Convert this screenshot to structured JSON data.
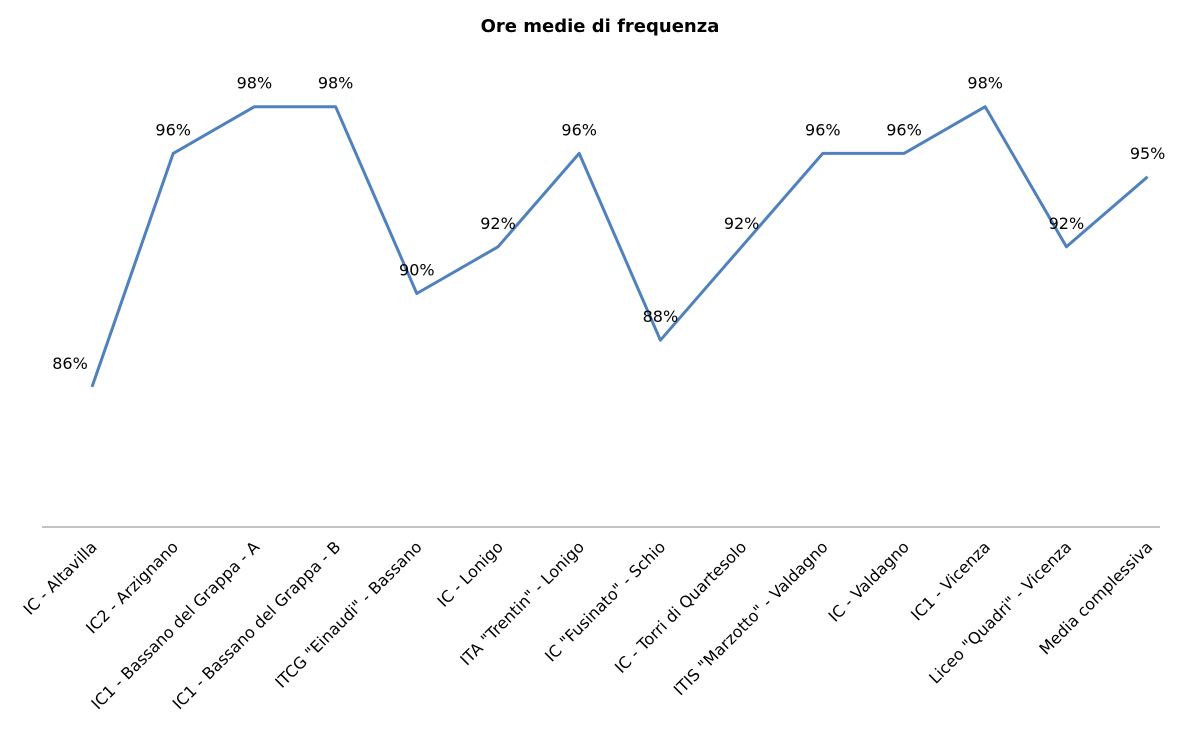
{
  "chart_data": {
    "type": "line",
    "title": "Ore medie di frequenza",
    "categories": [
      "IC - Altavilla",
      "IC2 - Arzignano",
      "IC1 - Bassano del Grappa - A",
      "IC1 - Bassano del Grappa - B",
      "ITCG \"Einaudi\" - Bassano",
      "IC - Lonigo",
      "ITA \"Trentin\" - Lonigo",
      "IC \"Fusinato\" - Schio",
      "IC - Torri di Quartesolo",
      "ITIS \"Marzotto\" - Valdagno",
      "IC - Valdagno",
      "IC1 - Vicenza",
      "Liceo \"Quadri\" - Vicenza",
      "Media complessiva"
    ],
    "series": [
      {
        "color": "#4f81bd",
        "values": [
          86,
          96,
          98,
          98,
          90,
          92,
          96,
          88,
          92,
          96,
          96,
          98,
          92,
          95
        ],
        "value_labels": [
          "86%",
          "96%",
          "98%",
          "98%",
          "90%",
          "92%",
          "96%",
          "88%",
          "92%",
          "96%",
          "96%",
          "98%",
          "92%",
          "95%"
        ]
      }
    ],
    "ylim": [
      80,
      100
    ]
  }
}
